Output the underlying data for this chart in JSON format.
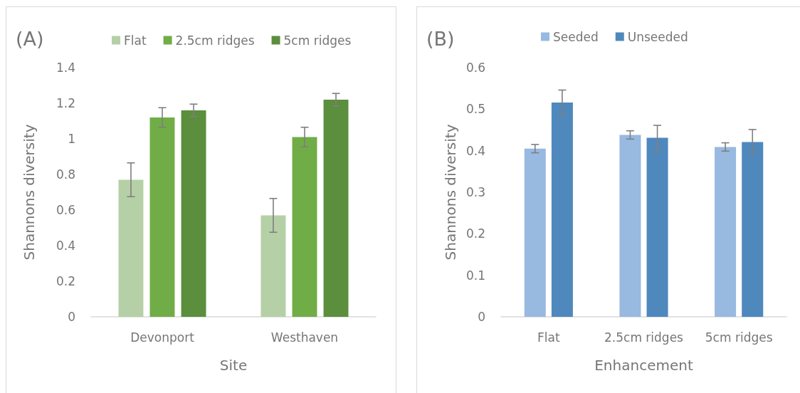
{
  "chart_data": [
    {
      "type": "bar",
      "title": "(A)",
      "xlabel": "Site",
      "ylabel": "Shannons diversity",
      "categories": [
        "Devonport",
        "Westhaven"
      ],
      "series": [
        {
          "name": "Flat",
          "color": "#b5d0a6",
          "values": [
            0.77,
            0.57
          ],
          "errors": [
            0.095,
            0.095
          ]
        },
        {
          "name": "2.5cm ridges",
          "color": "#70ad47",
          "values": [
            1.12,
            1.01
          ],
          "errors": [
            0.055,
            0.055
          ]
        },
        {
          "name": "5cm ridges",
          "color": "#5b8e3d",
          "values": [
            1.16,
            1.22
          ],
          "errors": [
            0.035,
            0.035
          ]
        }
      ],
      "ylim": [
        0,
        1.4
      ],
      "yticks": [
        0,
        0.2,
        0.4,
        0.6,
        0.8,
        1,
        1.2,
        1.4
      ],
      "legend": "top",
      "grid": false
    },
    {
      "type": "bar",
      "title": "(B)",
      "xlabel": "Enhancement",
      "ylabel": "Shannons diversity",
      "categories": [
        "Flat",
        "2.5cm ridges",
        "5cm ridges"
      ],
      "series": [
        {
          "name": "Seeded",
          "color": "#98b9e0",
          "values": [
            0.405,
            0.438,
            0.409
          ],
          "errors": [
            0.01,
            0.01,
            0.01
          ]
        },
        {
          "name": "Unseeded",
          "color": "#4f88bd",
          "values": [
            0.516,
            0.431,
            0.421
          ],
          "errors": [
            0.03,
            0.03,
            0.03
          ]
        }
      ],
      "ylim": [
        0,
        0.6
      ],
      "yticks": [
        0,
        0.1,
        0.2,
        0.3,
        0.4,
        0.5,
        0.6
      ],
      "legend": "top",
      "grid": false
    }
  ]
}
